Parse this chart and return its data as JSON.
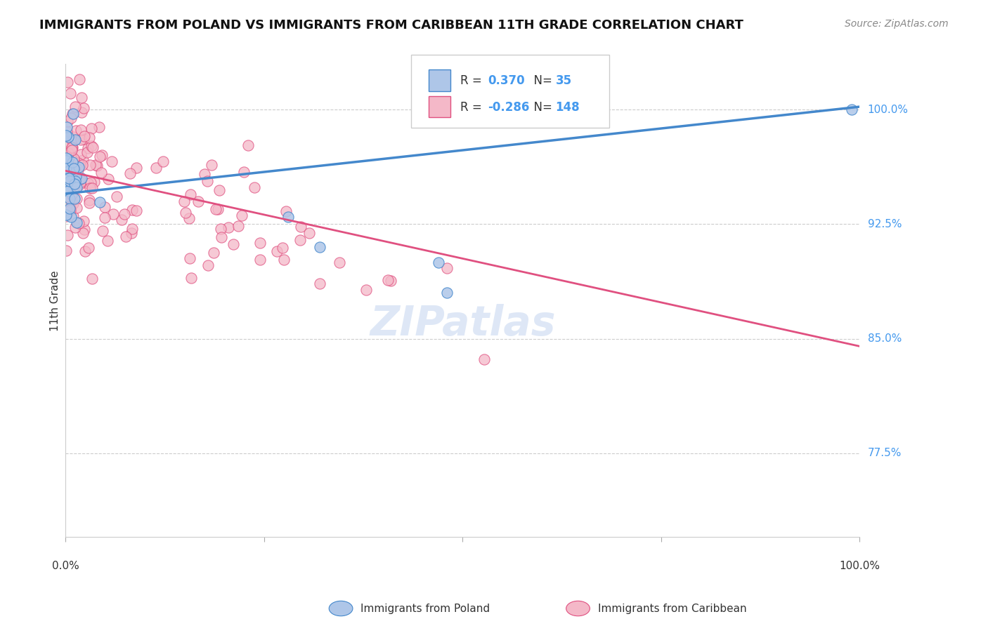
{
  "title": "IMMIGRANTS FROM POLAND VS IMMIGRANTS FROM CARIBBEAN 11TH GRADE CORRELATION CHART",
  "source": "Source: ZipAtlas.com",
  "ylabel": "11th Grade",
  "y_tick_labels": [
    "77.5%",
    "85.0%",
    "92.5%",
    "100.0%"
  ],
  "y_tick_values": [
    0.775,
    0.85,
    0.925,
    1.0
  ],
  "x_range": [
    0.0,
    1.0
  ],
  "y_range": [
    0.72,
    1.03
  ],
  "poland_color": "#aec6e8",
  "caribbean_color": "#f4b8c8",
  "trend_blue": "#4488cc",
  "trend_pink": "#e05080",
  "R_poland": 0.37,
  "N_poland": 35,
  "R_caribbean": -0.286,
  "N_caribbean": 148,
  "y_pol_line_start": 0.945,
  "y_pol_line_end": 1.002,
  "y_car_line_start": 0.96,
  "y_car_line_end": 0.845,
  "watermark": "ZIPatlas",
  "watermark_color": "#c8d8f0",
  "legend_r_poland": "R =  0.370",
  "legend_n_poland": "N=  35",
  "legend_r_caribbean": "R = -0.286",
  "legend_n_caribbean": "N= 148",
  "bottom_label_poland": "Immigrants from Poland",
  "bottom_label_caribbean": "Immigrants from Caribbean"
}
